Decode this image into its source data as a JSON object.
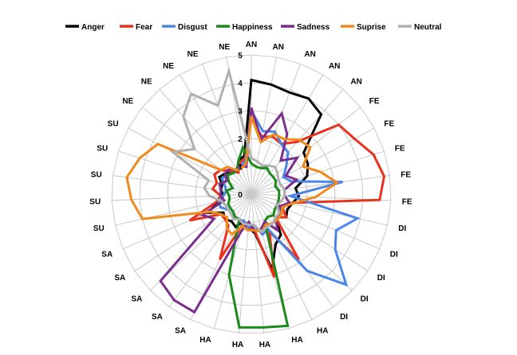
{
  "chart_data": {
    "type": "radar",
    "title": "",
    "categories": [
      "AN",
      "AN",
      "AN",
      "AN",
      "AN",
      "FE",
      "FE",
      "FE",
      "FE",
      "FE",
      "DI",
      "DI",
      "DI",
      "DI",
      "DI",
      "HA",
      "HA",
      "HA",
      "HA",
      "HA",
      "SA",
      "SA",
      "SA",
      "SA",
      "SA",
      "SU",
      "SU",
      "SU",
      "SU",
      "SU",
      "NE",
      "NE",
      "NE",
      "NE",
      "NE"
    ],
    "r_ticks": [
      "0",
      "1",
      "2",
      "3",
      "4",
      "5"
    ],
    "r_range": [
      0,
      5
    ],
    "grid": true,
    "legend_position": "top",
    "series": [
      {
        "name": "Anger",
        "color": "#000000",
        "values": [
          4.1,
          4.0,
          3.9,
          4.0,
          3.8,
          2.4,
          2.3,
          2.1,
          1.6,
          1.7,
          1.5,
          1.4,
          1.5,
          1.2,
          1.8,
          2.0,
          2.8,
          1.4,
          1.2,
          1.0,
          1.3,
          1.2,
          1.3,
          1.2,
          1.7,
          1.2,
          1.0,
          1.1,
          1.1,
          1.3,
          1.2,
          1.1,
          1.0,
          1.3,
          1.4
        ]
      },
      {
        "name": "Fear",
        "color": "#e8321e",
        "values": [
          2.7,
          2.1,
          2.2,
          2.1,
          2.5,
          4.0,
          4.2,
          4.6,
          4.8,
          4.6,
          1.4,
          1.2,
          1.5,
          1.2,
          2.9,
          1.5,
          3.1,
          1.3,
          1.2,
          1.1,
          2.6,
          1.4,
          1.3,
          1.3,
          2.4,
          1.3,
          1.1,
          1.4,
          1.3,
          1.5,
          1.4,
          1.1,
          0.9,
          1.2,
          1.3
        ]
      },
      {
        "name": "Disgust",
        "color": "#4a86e8",
        "values": [
          3.0,
          2.3,
          2.4,
          2.1,
          2.0,
          1.6,
          1.3,
          1.5,
          3.3,
          1.4,
          3.9,
          3.3,
          3.6,
          4.7,
          3.4,
          1.4,
          1.5,
          1.1,
          1.2,
          1.0,
          1.0,
          1.0,
          1.0,
          1.0,
          1.2,
          1.2,
          1.0,
          0.9,
          1.0,
          1.2,
          1.1,
          1.0,
          1.0,
          1.1,
          1.2
        ]
      },
      {
        "name": "Happiness",
        "color": "#1a8a1a",
        "values": [
          1.1,
          1.0,
          1.0,
          1.1,
          1.0,
          1.0,
          1.0,
          0.9,
          1.0,
          1.0,
          1.0,
          1.0,
          1.0,
          1.1,
          1.0,
          1.1,
          4.9,
          4.8,
          4.8,
          3.0,
          1.0,
          1.0,
          0.9,
          0.9,
          0.9,
          0.8,
          0.8,
          0.9,
          0.7,
          0.9,
          1.1,
          1.0,
          1.0,
          1.3,
          1.7
        ]
      },
      {
        "name": "Sadness",
        "color": "#7b2d8e",
        "values": [
          3.1,
          2.0,
          3.1,
          2.5,
          1.6,
          2.1,
          1.4,
          1.7,
          1.2,
          1.2,
          1.4,
          1.1,
          1.3,
          1.2,
          1.6,
          1.1,
          1.3,
          1.3,
          1.0,
          1.4,
          4.7,
          4.7,
          4.5,
          1.6,
          1.9,
          1.0,
          1.1,
          1.1,
          1.2,
          1.0,
          1.2,
          1.2,
          1.0,
          1.1,
          1.0
        ]
      },
      {
        "name": "Suprise",
        "color": "#f08a1e",
        "values": [
          2.8,
          1.9,
          2.3,
          2.3,
          2.6,
          2.7,
          2.1,
          2.6,
          3.1,
          2.3,
          1.5,
          1.2,
          1.3,
          1.3,
          1.3,
          1.2,
          1.4,
          1.3,
          1.3,
          1.2,
          1.6,
          1.5,
          1.2,
          1.3,
          1.6,
          4.0,
          4.3,
          4.5,
          4.2,
          3.8,
          1.4,
          1.3,
          1.0,
          1.0,
          1.1
        ]
      },
      {
        "name": "Neutral",
        "color": "#b0b0b0",
        "values": [
          1.3,
          1.2,
          1.1,
          1.2,
          1.3,
          1.2,
          1.1,
          1.1,
          1.2,
          1.2,
          1.1,
          1.0,
          1.2,
          1.2,
          1.3,
          1.3,
          1.4,
          1.1,
          1.1,
          1.1,
          1.0,
          1.1,
          1.0,
          1.0,
          1.0,
          1.1,
          1.5,
          1.7,
          1.6,
          3.2,
          2.6,
          3.7,
          4.2,
          3.4,
          4.5
        ]
      }
    ]
  }
}
